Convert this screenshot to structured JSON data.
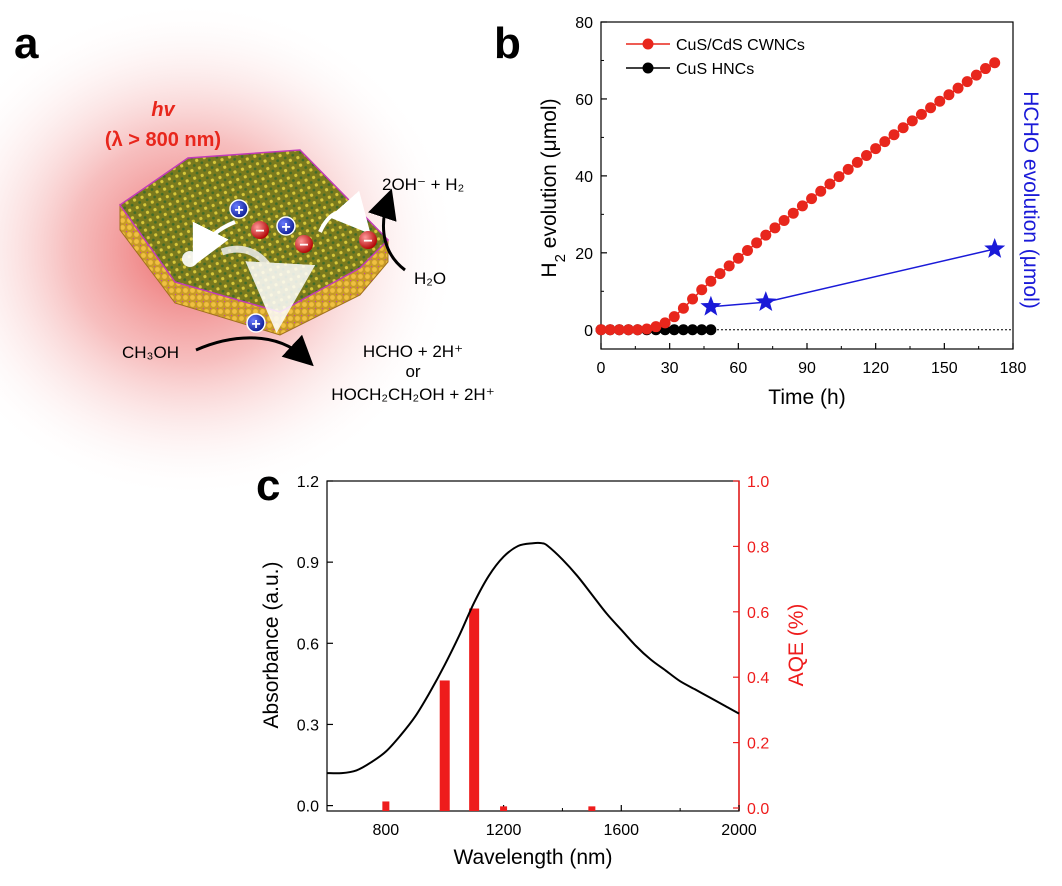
{
  "panels": {
    "a": "a",
    "b": "b",
    "c": "c"
  },
  "schematic": {
    "light_symbol": "hv",
    "light_condition": "(λ > 800 nm)",
    "product_top": "2OH⁻ + H₂",
    "reactant_water": "H₂O",
    "reactant_methanol": "CH₃OH",
    "product_bottom_1": "HCHO + 2H⁺",
    "product_bottom_or": "or",
    "product_bottom_2": "HOCH₂CH₂OH + 2H⁺",
    "hole_symbol": "+",
    "electron_symbol": "−"
  },
  "colors": {
    "red_series": "#e8261c",
    "black_series": "#000000",
    "blue_series": "#1a1ad8",
    "aqe_bar": "#ee1c1c"
  },
  "chart_data": [
    {
      "id": "b",
      "type": "line",
      "xlabel": "Time (h)",
      "ylabel": "H2 evolution (μmol)",
      "ylabel_main": "H",
      "ylabel_sub": "2",
      "ylabel_rest": " evolution (μmol)",
      "y2label": "HCHO evolution (μmol)",
      "xlim": [
        0,
        180
      ],
      "ylim": [
        -5,
        80
      ],
      "xticks": [
        "0",
        "30",
        "60",
        "90",
        "120",
        "150",
        "180"
      ],
      "yticks": [
        "0",
        "20",
        "40",
        "60",
        "80"
      ],
      "legend_position": "top-left",
      "series": [
        {
          "name": "CuS/CdS CWNCs",
          "marker": "circle",
          "x": [
            0,
            4,
            8,
            12,
            16,
            20,
            24,
            28,
            32,
            36,
            40,
            44,
            48,
            52,
            56,
            60,
            64,
            68,
            72,
            76,
            80,
            84,
            88,
            92,
            96,
            100,
            104,
            108,
            112,
            116,
            120,
            124,
            128,
            132,
            136,
            140,
            144,
            148,
            152,
            156,
            160,
            164,
            168,
            172
          ],
          "y": [
            0,
            0,
            0,
            0,
            0,
            0.2,
            0.8,
            1.8,
            3.4,
            5.6,
            8.0,
            10.4,
            12.6,
            14.6,
            16.6,
            18.6,
            20.6,
            22.6,
            24.6,
            26.5,
            28.4,
            30.3,
            32.2,
            34.1,
            36.0,
            37.9,
            39.8,
            41.7,
            43.5,
            45.3,
            47.1,
            48.9,
            50.7,
            52.5,
            54.3,
            56.0,
            57.7,
            59.4,
            61.1,
            62.8,
            64.5,
            66.2,
            67.9,
            69.4
          ]
        },
        {
          "name": "CuS HNCs",
          "marker": "circle",
          "x": [
            0,
            4,
            8,
            12,
            16,
            20,
            24,
            28,
            32,
            36,
            40,
            44,
            48
          ],
          "y": [
            0,
            0,
            0,
            0,
            0,
            0,
            0,
            0,
            0,
            0,
            0,
            0,
            0
          ]
        },
        {
          "name": "",
          "axis": "right",
          "marker": "star",
          "x": [
            48,
            72,
            172
          ],
          "y": [
            6.0,
            7.2,
            21.0
          ]
        }
      ]
    },
    {
      "id": "c",
      "type": "line",
      "xlabel": "Wavelength (nm)",
      "ylabel": "Absorbance (a.u.)",
      "y2label": "AQE (%)",
      "xlim": [
        600,
        2000
      ],
      "ylim": [
        -0.02,
        1.2
      ],
      "y2lim": [
        0,
        1.0
      ],
      "xticks": [
        "800",
        "1200",
        "1600",
        "2000"
      ],
      "yticks": [
        "0.0",
        "0.3",
        "0.6",
        "0.9",
        "1.2"
      ],
      "y2ticks": [
        "0.0",
        "0.2",
        "0.4",
        "0.6",
        "0.8",
        "1.0"
      ],
      "series": [
        {
          "name": "",
          "x": [
            600,
            650,
            700,
            750,
            800,
            850,
            900,
            950,
            1000,
            1050,
            1100,
            1150,
            1200,
            1250,
            1300,
            1330,
            1350,
            1400,
            1450,
            1500,
            1550,
            1600,
            1650,
            1700,
            1750,
            1800,
            1850,
            1900,
            1950,
            2000
          ],
          "y": [
            0.12,
            0.12,
            0.13,
            0.16,
            0.2,
            0.26,
            0.33,
            0.42,
            0.52,
            0.63,
            0.75,
            0.85,
            0.92,
            0.96,
            0.97,
            0.97,
            0.96,
            0.91,
            0.85,
            0.78,
            0.71,
            0.65,
            0.59,
            0.54,
            0.5,
            0.46,
            0.43,
            0.4,
            0.37,
            0.34
          ]
        },
        {
          "name": "",
          "type": "bar",
          "axis": "right",
          "x": [
            800,
            1000,
            1100,
            1200,
            1500
          ],
          "y": [
            0.02,
            0.39,
            0.61,
            0.005,
            0.005
          ]
        }
      ]
    }
  ]
}
